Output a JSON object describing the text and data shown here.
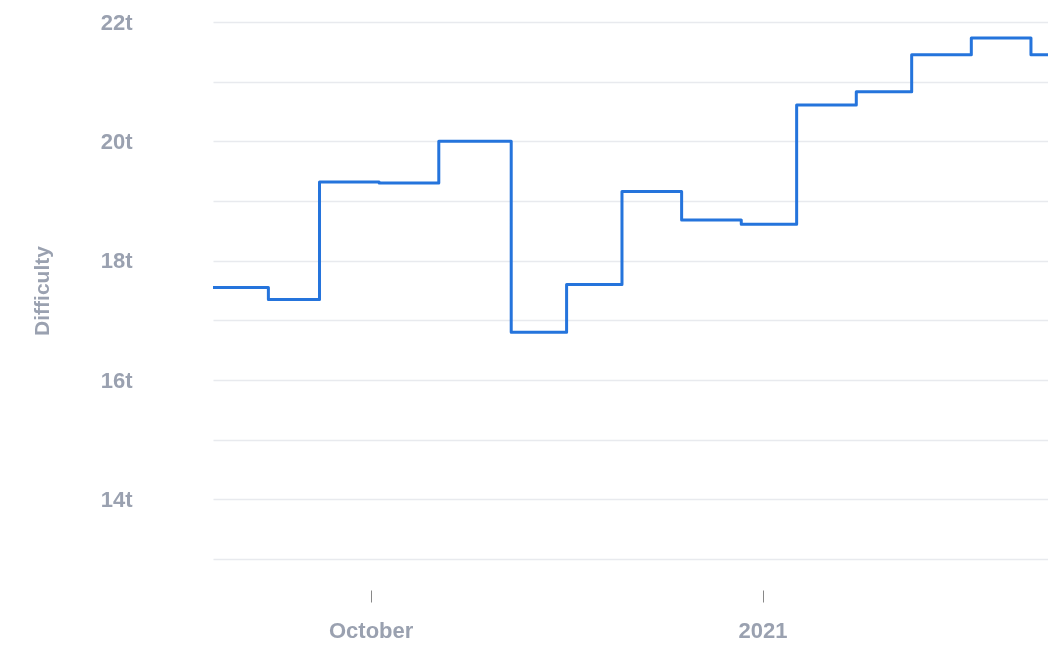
{
  "chart_data": {
    "type": "step",
    "ylabel": "Difficulty",
    "grid": "y",
    "line_style": "solid",
    "xlim": [
      "2020-08-25",
      "2021-03-09"
    ],
    "xticks": [
      {
        "value": "2020-10-01",
        "label": "October"
      },
      {
        "value": "2021-01-01",
        "label": "2021"
      }
    ],
    "ylim": [
      13,
      22
    ],
    "yticks": [
      {
        "value": 13,
        "label": null
      },
      {
        "value": 14,
        "label": "14t"
      },
      {
        "value": 15,
        "label": null
      },
      {
        "value": 16,
        "label": "16t"
      },
      {
        "value": 17,
        "label": null
      },
      {
        "value": 18,
        "label": "18t"
      },
      {
        "value": 19,
        "label": null
      },
      {
        "value": 20,
        "label": "20t"
      },
      {
        "value": 21,
        "label": null
      },
      {
        "value": 22,
        "label": "22t"
      }
    ],
    "x": [
      "2020-08-25",
      "2020-09-07",
      "2020-09-19",
      "2020-10-03",
      "2020-10-17",
      "2020-11-03",
      "2020-11-16",
      "2020-11-29",
      "2020-12-13",
      "2020-12-27",
      "2021-01-09",
      "2021-01-23",
      "2021-02-05",
      "2021-02-19",
      "2021-03-05",
      "2021-03-09"
    ],
    "series": [
      {
        "color": "#2574dc",
        "values": [
          17.55,
          17.35,
          19.32,
          19.3,
          20.0,
          16.8,
          17.6,
          19.16,
          18.68,
          18.61,
          20.61,
          20.83,
          21.45,
          21.73,
          21.45,
          21.45
        ]
      }
    ]
  }
}
